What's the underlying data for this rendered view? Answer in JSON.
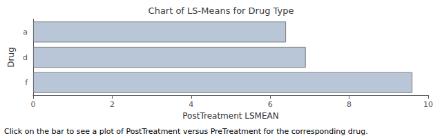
{
  "chart_data": {
    "type": "bar",
    "orientation": "horizontal",
    "title": "Chart of LS-Means for Drug Type",
    "categories": [
      "f",
      "d",
      "a"
    ],
    "values": [
      9.6,
      6.9,
      6.4
    ],
    "color": "#b8c6d8",
    "xlabel": "PostTreatment LSMEAN",
    "ylabel": "Drug",
    "xlim": [
      0,
      10
    ],
    "xticks": [
      0,
      2,
      4,
      6,
      8,
      10
    ],
    "grid": false,
    "annotations": [
      "Click on the bar to see a plot of PostTreatment versus PreTreatment for the corresponding drug."
    ]
  }
}
